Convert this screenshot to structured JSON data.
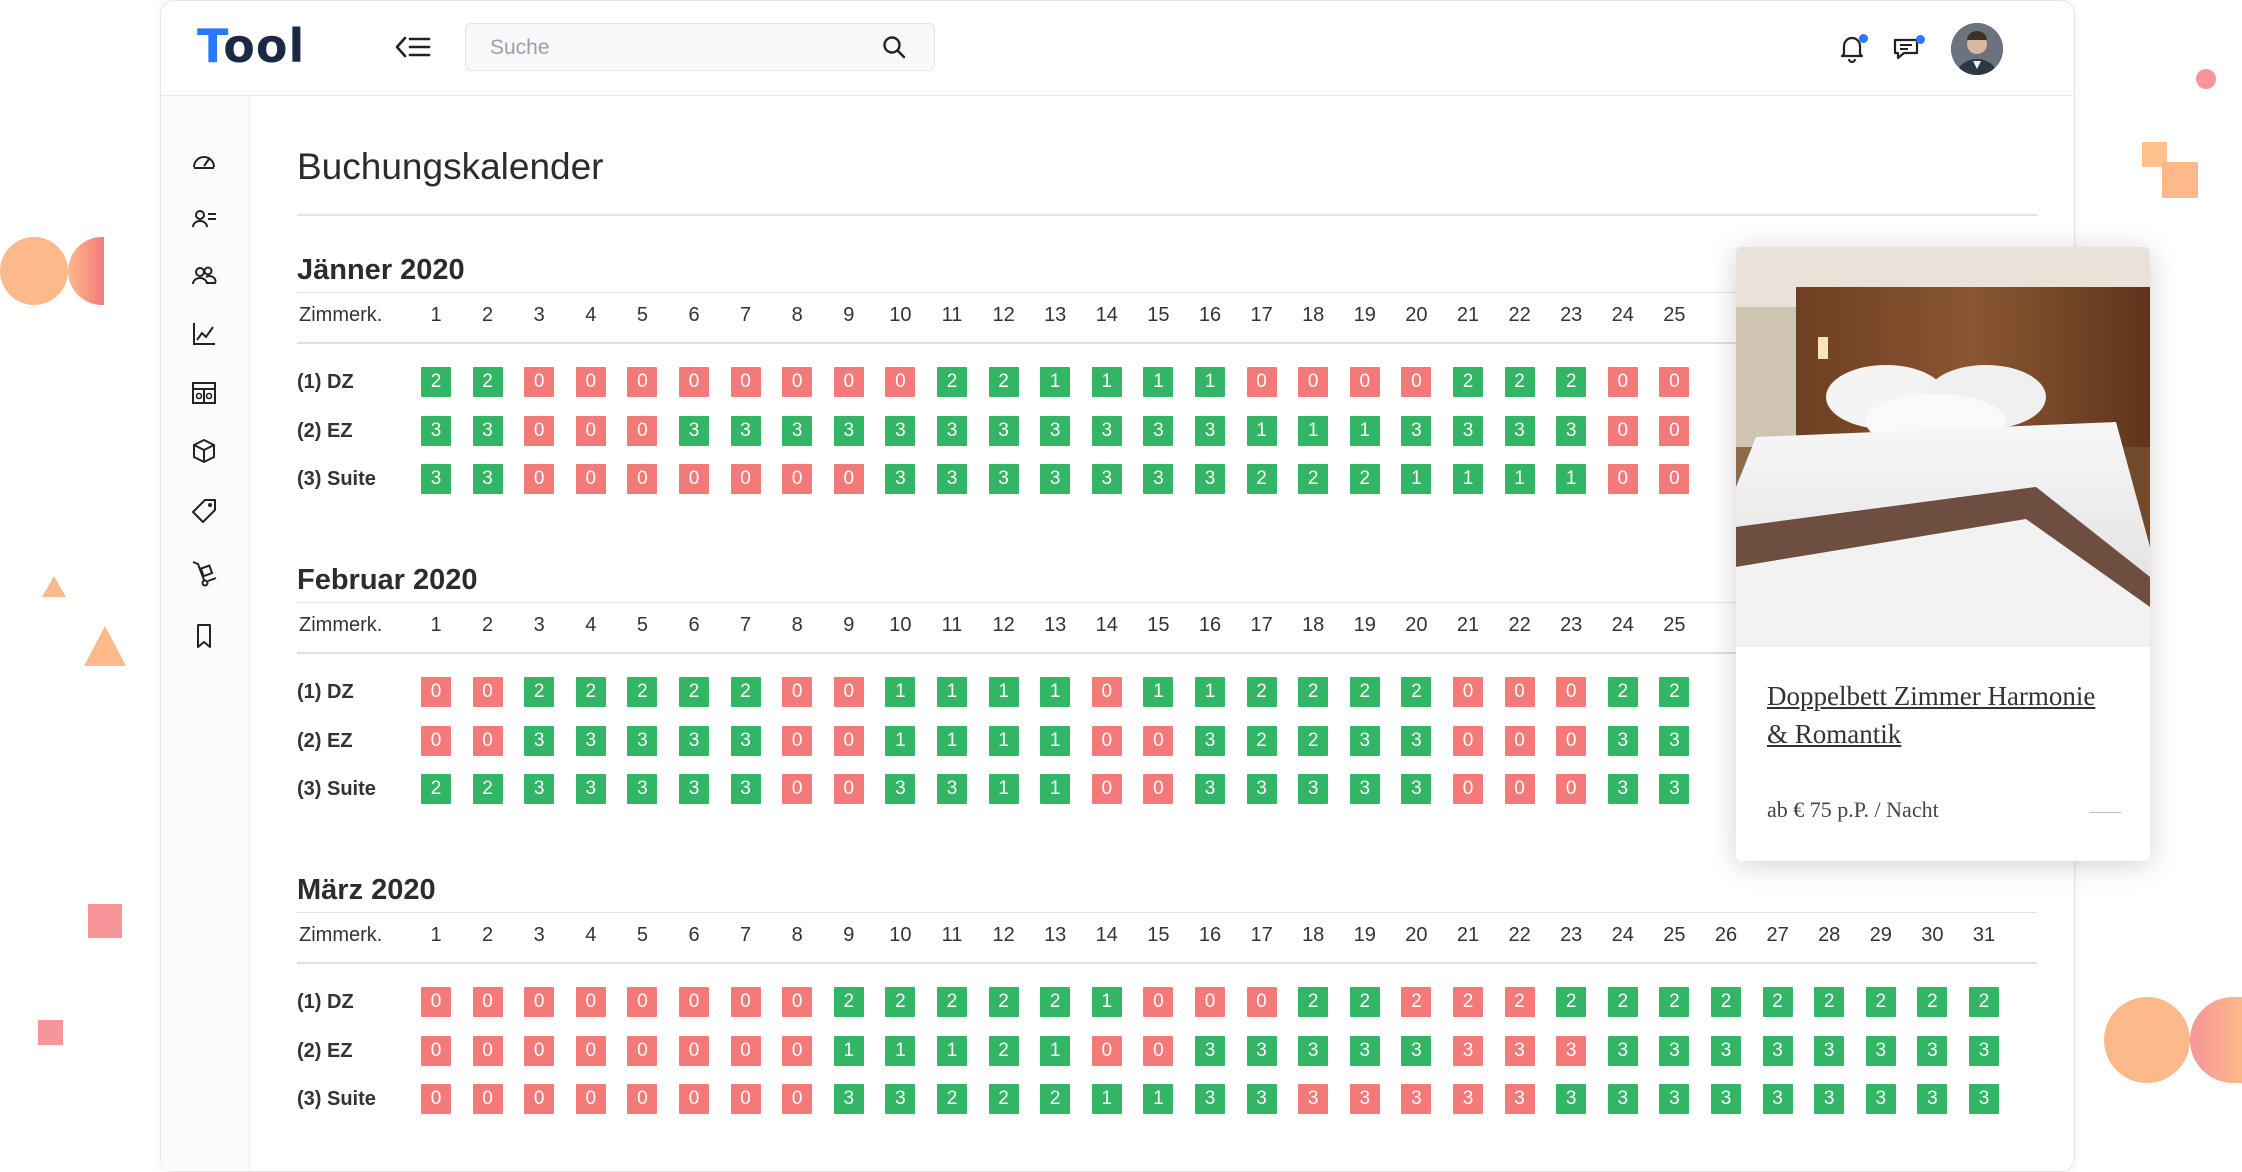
{
  "app": {
    "logo": "Tool",
    "search_placeholder": "Suche",
    "sidebar_icons": [
      "dashboard-icon",
      "users-list-icon",
      "group-icon",
      "chart-icon",
      "table-icon",
      "box-icon",
      "tag-icon",
      "trolley-icon",
      "bookmark-icon"
    ]
  },
  "page": {
    "title": "Buchungskalender"
  },
  "calendar": {
    "column_label": "Zimmerk.",
    "months": [
      {
        "title": "Jänner 2020",
        "days": 25,
        "rooms": [
          {
            "label": "(1) DZ",
            "values": [
              2,
              2,
              0,
              0,
              0,
              0,
              0,
              0,
              0,
              0,
              2,
              2,
              1,
              1,
              1,
              1,
              0,
              0,
              0,
              0,
              2,
              2,
              2,
              0,
              0
            ]
          },
          {
            "label": "(2) EZ",
            "values": [
              3,
              3,
              0,
              0,
              0,
              3,
              3,
              3,
              3,
              3,
              3,
              3,
              3,
              3,
              3,
              3,
              1,
              1,
              1,
              3,
              3,
              3,
              3,
              0,
              0
            ]
          },
          {
            "label": "(3) Suite",
            "values": [
              3,
              3,
              0,
              0,
              0,
              0,
              0,
              0,
              0,
              3,
              3,
              3,
              3,
              3,
              3,
              3,
              2,
              2,
              2,
              1,
              1,
              1,
              1,
              0,
              0
            ]
          }
        ]
      },
      {
        "title": "Februar 2020",
        "days": 25,
        "rooms": [
          {
            "label": "(1) DZ",
            "values": [
              0,
              0,
              2,
              2,
              2,
              2,
              2,
              0,
              0,
              1,
              1,
              1,
              1,
              0,
              1,
              1,
              2,
              2,
              2,
              2,
              0,
              0,
              0,
              2,
              2
            ]
          },
          {
            "label": "(2) EZ",
            "values": [
              0,
              0,
              3,
              3,
              3,
              3,
              3,
              0,
              0,
              1,
              1,
              1,
              1,
              0,
              0,
              3,
              2,
              2,
              3,
              3,
              0,
              0,
              0,
              3,
              3
            ]
          },
          {
            "label": "(3) Suite",
            "values": [
              2,
              2,
              3,
              3,
              3,
              3,
              3,
              0,
              0,
              3,
              3,
              1,
              1,
              0,
              0,
              3,
              3,
              3,
              3,
              3,
              0,
              0,
              0,
              3,
              3
            ]
          }
        ]
      },
      {
        "title": "März 2020",
        "days": 31,
        "rooms": [
          {
            "label": "(1) DZ",
            "values": [
              0,
              0,
              0,
              0,
              0,
              0,
              0,
              0,
              2,
              2,
              2,
              2,
              2,
              1,
              0,
              0,
              0,
              2,
              2,
              2,
              2,
              2,
              2,
              2,
              2,
              2,
              2,
              2,
              2,
              2,
              2
            ],
            "red_override": [
              20,
              21,
              22
            ]
          },
          {
            "label": "(2) EZ",
            "values": [
              0,
              0,
              0,
              0,
              0,
              0,
              0,
              0,
              1,
              1,
              1,
              2,
              1,
              0,
              0,
              3,
              3,
              3,
              3,
              3,
              3,
              3,
              3,
              3,
              3,
              3,
              3,
              3,
              3,
              3,
              3
            ],
            "red_override": [
              21,
              22,
              23
            ]
          },
          {
            "label": "(3) Suite",
            "values": [
              0,
              0,
              0,
              0,
              0,
              0,
              0,
              0,
              3,
              3,
              2,
              2,
              2,
              1,
              1,
              3,
              3,
              3,
              3,
              3,
              3,
              3,
              3,
              3,
              3,
              3,
              3,
              3,
              3,
              3,
              3
            ],
            "red_override": [
              18,
              19,
              20,
              21,
              22
            ]
          }
        ]
      }
    ]
  },
  "card": {
    "title": "Doppelbett Zimmer Harmonie & Romantik",
    "price": "ab € 75 p.P. / Nacht"
  },
  "colors": {
    "available": "#33b566",
    "booked": "#f47a7a",
    "accent": "#2979ff"
  }
}
